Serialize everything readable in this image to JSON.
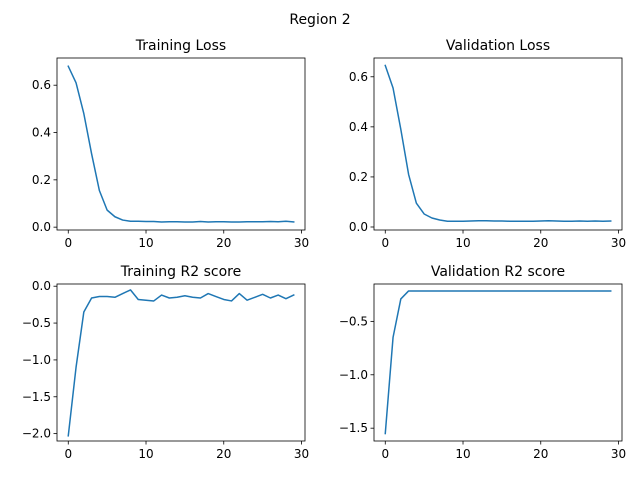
{
  "suptitle": "Region 2",
  "chart_data": [
    {
      "type": "line",
      "title": "Training Loss",
      "xlabel": "",
      "ylabel": "",
      "grid": false,
      "xlim": [
        -1.45,
        30.45
      ],
      "ylim": [
        -0.012,
        0.715
      ],
      "xticks": [
        0,
        10,
        20,
        30
      ],
      "yticks": [
        0.0,
        0.2,
        0.4,
        0.6
      ],
      "ytick_labels": [
        "0.0",
        "0.2",
        "0.4",
        "0.6"
      ],
      "series": [
        {
          "color": "#1f77b4",
          "x": [
            0,
            1,
            2,
            3,
            4,
            5,
            6,
            7,
            8,
            9,
            10,
            11,
            12,
            13,
            14,
            15,
            16,
            17,
            18,
            19,
            20,
            21,
            22,
            23,
            24,
            25,
            26,
            27,
            28,
            29
          ],
          "values": [
            0.68,
            0.61,
            0.48,
            0.31,
            0.155,
            0.072,
            0.044,
            0.03,
            0.025,
            0.025,
            0.024,
            0.024,
            0.022,
            0.023,
            0.023,
            0.022,
            0.022,
            0.024,
            0.022,
            0.023,
            0.023,
            0.022,
            0.022,
            0.023,
            0.023,
            0.023,
            0.024,
            0.023,
            0.025,
            0.022
          ]
        }
      ]
    },
    {
      "type": "line",
      "title": "Validation Loss",
      "xlabel": "",
      "ylabel": "",
      "grid": false,
      "xlim": [
        -1.45,
        30.45
      ],
      "ylim": [
        -0.012,
        0.675
      ],
      "xticks": [
        0,
        10,
        20,
        30
      ],
      "yticks": [
        0.0,
        0.2,
        0.4,
        0.6
      ],
      "ytick_labels": [
        "0.0",
        "0.2",
        "0.4",
        "0.6"
      ],
      "series": [
        {
          "color": "#1f77b4",
          "x": [
            0,
            1,
            2,
            3,
            4,
            5,
            6,
            7,
            8,
            9,
            10,
            11,
            12,
            13,
            14,
            15,
            16,
            17,
            18,
            19,
            20,
            21,
            22,
            23,
            24,
            25,
            26,
            27,
            28,
            29
          ],
          "values": [
            0.645,
            0.555,
            0.39,
            0.21,
            0.095,
            0.052,
            0.036,
            0.028,
            0.023,
            0.023,
            0.023,
            0.024,
            0.025,
            0.025,
            0.024,
            0.024,
            0.023,
            0.023,
            0.023,
            0.023,
            0.024,
            0.025,
            0.024,
            0.023,
            0.023,
            0.024,
            0.023,
            0.024,
            0.023,
            0.024
          ]
        }
      ]
    },
    {
      "type": "line",
      "title": "Training R2 score",
      "xlabel": "",
      "ylabel": "",
      "grid": false,
      "xlim": [
        -1.45,
        30.45
      ],
      "ylim": [
        -2.1,
        0.03
      ],
      "xticks": [
        0,
        10,
        20,
        30
      ],
      "yticks": [
        -2.0,
        -1.5,
        -1.0,
        -0.5,
        0.0
      ],
      "ytick_labels": [
        "−2.0",
        "−1.5",
        "−1.0",
        "−0.5",
        "0.0"
      ],
      "series": [
        {
          "color": "#1f77b4",
          "x": [
            0,
            1,
            2,
            3,
            4,
            5,
            6,
            7,
            8,
            9,
            10,
            11,
            12,
            13,
            14,
            15,
            16,
            17,
            18,
            19,
            20,
            21,
            22,
            23,
            24,
            25,
            26,
            27,
            28,
            29
          ],
          "values": [
            -2.03,
            -1.1,
            -0.35,
            -0.16,
            -0.14,
            -0.14,
            -0.15,
            -0.1,
            -0.05,
            -0.18,
            -0.19,
            -0.2,
            -0.12,
            -0.16,
            -0.15,
            -0.13,
            -0.15,
            -0.16,
            -0.1,
            -0.14,
            -0.18,
            -0.2,
            -0.1,
            -0.19,
            -0.15,
            -0.11,
            -0.16,
            -0.12,
            -0.17,
            -0.12
          ]
        }
      ]
    },
    {
      "type": "line",
      "title": "Validation R2 score",
      "xlabel": "",
      "ylabel": "",
      "grid": false,
      "xlim": [
        -1.45,
        30.45
      ],
      "ylim": [
        -1.62,
        -0.15
      ],
      "xticks": [
        0,
        10,
        20,
        30
      ],
      "yticks": [
        -1.5,
        -1.0,
        -0.5
      ],
      "ytick_labels": [
        "−1.5",
        "−1.0",
        "−0.5"
      ],
      "series": [
        {
          "color": "#1f77b4",
          "x": [
            0,
            1,
            2,
            3,
            4,
            5,
            6,
            7,
            8,
            9,
            10,
            11,
            12,
            13,
            14,
            15,
            16,
            17,
            18,
            19,
            20,
            21,
            22,
            23,
            24,
            25,
            26,
            27,
            28,
            29
          ],
          "values": [
            -1.55,
            -0.65,
            -0.29,
            -0.215,
            -0.215,
            -0.215,
            -0.215,
            -0.215,
            -0.215,
            -0.215,
            -0.215,
            -0.215,
            -0.215,
            -0.215,
            -0.215,
            -0.215,
            -0.215,
            -0.215,
            -0.215,
            -0.215,
            -0.215,
            -0.215,
            -0.215,
            -0.215,
            -0.215,
            -0.215,
            -0.215,
            -0.215,
            -0.215,
            -0.215
          ]
        }
      ]
    }
  ]
}
